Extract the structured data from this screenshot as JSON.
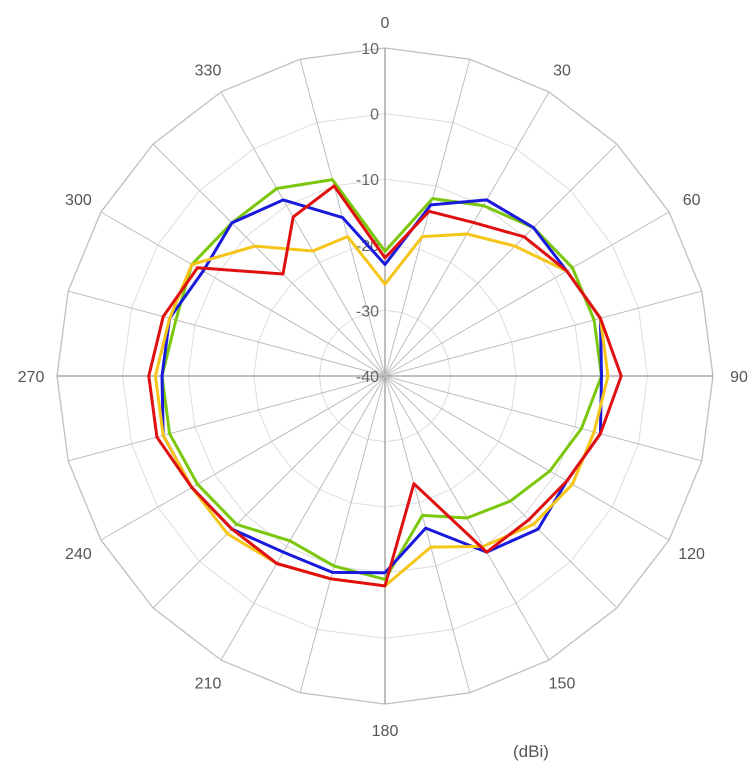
{
  "chart_data": {
    "type": "line",
    "subtype": "polar",
    "unit": "(dBi)",
    "radial_axis": {
      "range": [
        -40,
        10
      ],
      "tick_values": [
        -40,
        -30,
        -20,
        -10,
        0,
        10
      ],
      "tick_labels": [
        "-40",
        "-30",
        "-20",
        "-10",
        "0",
        "10"
      ]
    },
    "angular_axis": {
      "direction": "clockwise",
      "zero_at": "top",
      "tick_values": [
        0,
        30,
        60,
        90,
        120,
        150,
        180,
        210,
        240,
        270,
        300,
        330
      ],
      "tick_labels": [
        "0",
        "30",
        "60",
        "90",
        "120",
        "150",
        "180",
        "210",
        "240",
        "270",
        "300",
        "330"
      ],
      "grid_step_degrees": 15
    },
    "grid": true,
    "angles": [
      0,
      15,
      30,
      45,
      60,
      75,
      90,
      105,
      120,
      135,
      150,
      165,
      180,
      195,
      210,
      225,
      240,
      255,
      270,
      285,
      300,
      315,
      330,
      345
    ],
    "series": [
      {
        "color": "#7ac70c",
        "values": [
          -21,
          -12,
          -10,
          -8,
          -7,
          -7,
          -7,
          -9,
          -11,
          -13,
          -15,
          -18,
          -9,
          -10,
          -11,
          -8,
          -7,
          -6,
          -6,
          -7,
          -6,
          -7,
          -7,
          -9
        ]
      },
      {
        "color": "#1a1adc",
        "values": [
          -23,
          -13,
          -9,
          -8,
          -8,
          -6,
          -7,
          -6,
          -8,
          -7,
          -9,
          -16,
          -10,
          -9,
          -9,
          -7,
          -6,
          -5,
          -6,
          -6,
          -8,
          -7,
          -9,
          -15
        ]
      },
      {
        "color": "#f5c518",
        "values": [
          -26,
          -18,
          -15,
          -12,
          -8,
          -6,
          -6,
          -7,
          -7,
          -8,
          -10,
          -13,
          -8,
          -8,
          -7,
          -6,
          -6,
          -5,
          -5,
          -6,
          -6,
          -12,
          -18,
          -18
        ]
      },
      {
        "color": "#e01010",
        "values": [
          -22,
          -14,
          -13,
          -10,
          -8,
          -6,
          -4,
          -6,
          -8,
          -9,
          -9,
          -23,
          -8,
          -8,
          -7,
          -7,
          -6,
          -4,
          -4,
          -5,
          -7,
          -18,
          -12,
          -10
        ]
      }
    ]
  }
}
